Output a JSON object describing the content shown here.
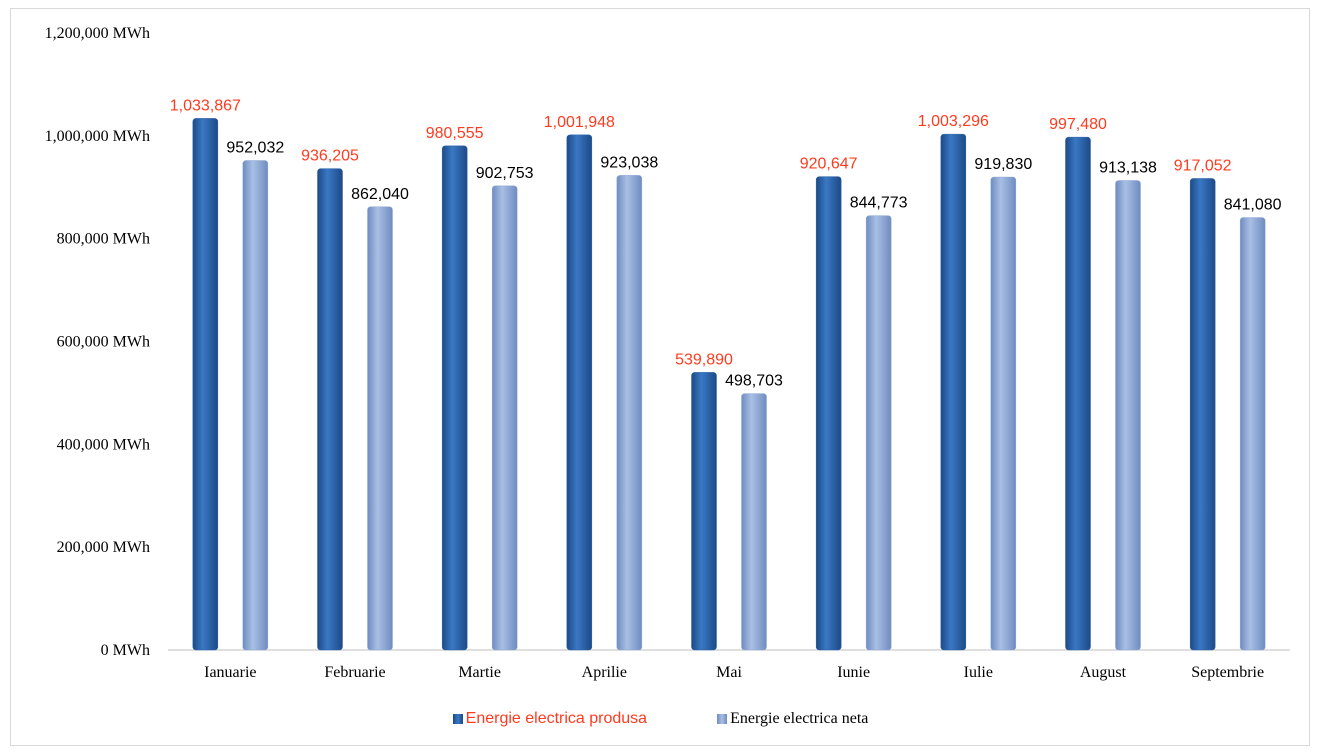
{
  "chart_data": {
    "type": "bar",
    "categories": [
      "Ianuarie",
      "Februarie",
      "Martie",
      "Aprilie",
      "Mai",
      "Iunie",
      "Iulie",
      "August",
      "Septembrie"
    ],
    "series": [
      {
        "name": "Energie electrica produsa",
        "values": [
          1033867,
          936205,
          980555,
          1001948,
          539890,
          920647,
          1003296,
          997480,
          917052
        ],
        "labels": [
          "1,033,867",
          "936,205",
          "980,555",
          "1,001,948",
          "539,890",
          "920,647",
          "1,003,296",
          "997,480",
          "917,052"
        ],
        "color": "#2e64a8",
        "label_color": "#ff3b1f"
      },
      {
        "name": "Energie electrica neta",
        "values": [
          952032,
          862040,
          902753,
          923038,
          498703,
          844773,
          919830,
          913138,
          841080
        ],
        "labels": [
          "952,032",
          "862,040",
          "902,753",
          "923,038",
          "498,703",
          "844,773",
          "919,830",
          "913,138",
          "841,080"
        ],
        "color": "#8fa9d6",
        "label_color": "#000000"
      }
    ],
    "y_ticks": [
      "0 MWh",
      "200,000 MWh",
      "400,000 MWh",
      "600,000 MWh",
      "800,000 MWh",
      "1,000,000 MWh",
      "1,200,000 MWh"
    ],
    "ylim": [
      0,
      1200000
    ],
    "grid": false,
    "legend_position": "bottom"
  }
}
